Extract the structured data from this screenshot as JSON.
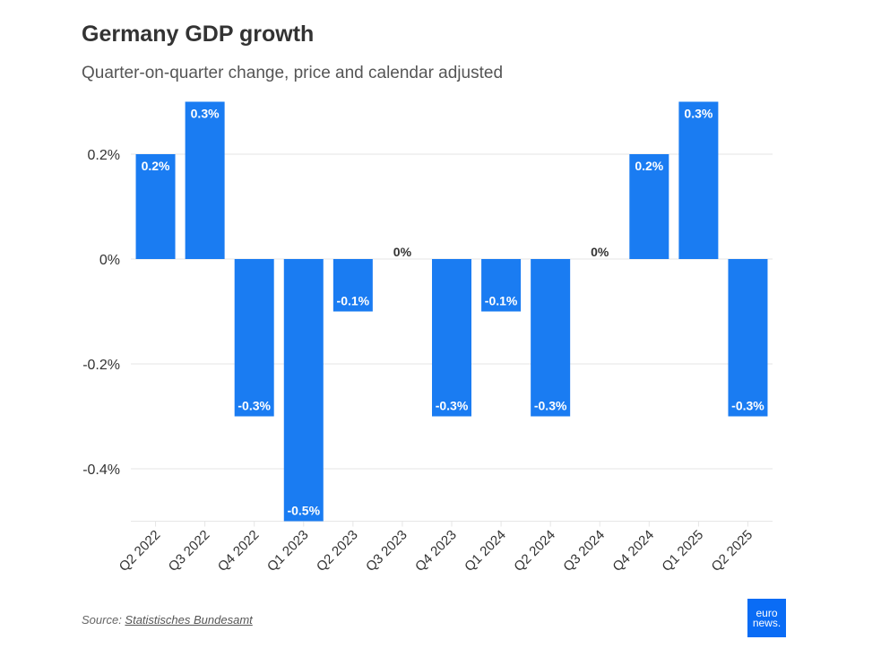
{
  "header": {
    "title": "Germany GDP growth",
    "subtitle": "Quarter-on-quarter change, price and calendar adjusted"
  },
  "footer": {
    "source_prefix": "Source: ",
    "source_name": "Statistisches Bundesamt",
    "logo_line1": "euro",
    "logo_line2": "news."
  },
  "colors": {
    "bar": "#1a7cf2",
    "grid": "#e6e6e6",
    "axis_text": "#333333"
  },
  "chart_data": {
    "type": "bar",
    "title": "Germany GDP growth",
    "subtitle": "Quarter-on-quarter change, price and calendar adjusted",
    "xlabel": "",
    "ylabel": "",
    "ylim": [
      -0.5,
      0.3
    ],
    "yticks": [
      0.2,
      0,
      -0.2,
      -0.4
    ],
    "ytick_labels": [
      "0.2%",
      "0%",
      "-0.2%",
      "-0.4%"
    ],
    "grid": true,
    "categories": [
      "Q2 2022",
      "Q3 2022",
      "Q4 2022",
      "Q1 2023",
      "Q2 2023",
      "Q3 2023",
      "Q4 2023",
      "Q1 2024",
      "Q2 2024",
      "Q3 2024",
      "Q4 2024",
      "Q1 2025",
      "Q2 2025"
    ],
    "values": [
      0.2,
      0.3,
      -0.3,
      -0.5,
      -0.1,
      0,
      -0.3,
      -0.1,
      -0.3,
      0,
      0.2,
      0.3,
      -0.3
    ],
    "data_labels": [
      "0.2%",
      "0.3%",
      "-0.3%",
      "-0.5%",
      "-0.1%",
      "0%",
      "-0.3%",
      "-0.1%",
      "-0.3%",
      "0%",
      "0.2%",
      "0.3%",
      "-0.3%"
    ]
  }
}
